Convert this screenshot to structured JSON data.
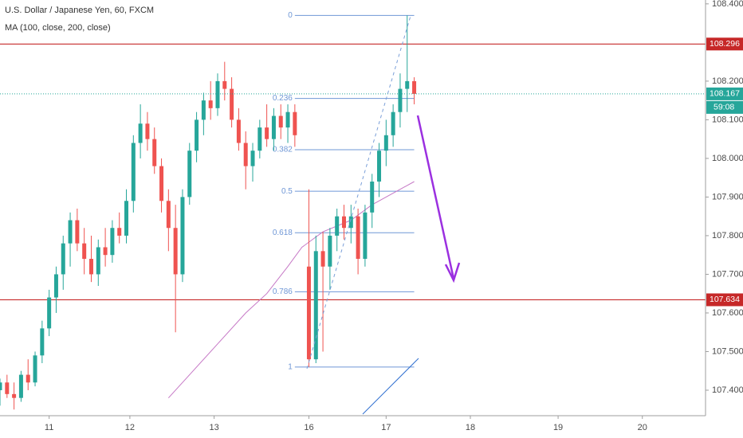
{
  "chart_data": {
    "type": "candlestick",
    "title": "U.S. Dollar / Japanese Yen, 60, FXCM",
    "subtitle": "MA (100, close, 200, close)",
    "up_color": "#26a69a",
    "down_color": "#ef5350",
    "x": [
      -14,
      -12,
      -10,
      -8,
      -6,
      -4,
      -2,
      0,
      2,
      4,
      6,
      8,
      10,
      12,
      14,
      16,
      18,
      20,
      22,
      24,
      26,
      28,
      30,
      32,
      34,
      36,
      38,
      40,
      42,
      44,
      46,
      48,
      50,
      52,
      54,
      56,
      58,
      60,
      62,
      64,
      66,
      68,
      70,
      74,
      76,
      78,
      80,
      82,
      84,
      86,
      88,
      90,
      92,
      94,
      96,
      98,
      100,
      102,
      104
    ],
    "open": [
      107.4,
      107.42,
      107.39,
      107.38,
      107.44,
      107.42,
      107.49,
      107.56,
      107.64,
      107.7,
      107.78,
      107.84,
      107.78,
      107.74,
      107.7,
      107.77,
      107.75,
      107.82,
      107.8,
      107.89,
      108.04,
      108.09,
      108.05,
      107.98,
      107.89,
      107.82,
      107.7,
      107.9,
      108.02,
      108.1,
      108.15,
      108.13,
      108.2,
      108.18,
      108.1,
      108.04,
      107.98,
      108.02,
      108.08,
      108.05,
      108.11,
      108.08,
      108.12,
      107.72,
      107.48,
      107.76,
      107.72,
      107.8,
      107.85,
      107.82,
      107.85,
      107.74,
      107.86,
      107.94,
      108.02,
      108.06,
      108.12,
      108.18,
      108.2
    ],
    "high": [
      107.43,
      107.44,
      107.42,
      107.45,
      107.48,
      107.5,
      107.58,
      107.66,
      107.72,
      107.8,
      107.86,
      107.87,
      107.82,
      107.8,
      107.79,
      107.82,
      107.84,
      107.86,
      107.92,
      108.06,
      108.14,
      108.12,
      108.08,
      108.0,
      107.92,
      107.88,
      107.92,
      108.04,
      108.12,
      108.17,
      108.2,
      108.22,
      108.25,
      108.21,
      108.13,
      108.07,
      108.04,
      108.1,
      108.14,
      108.13,
      108.14,
      108.14,
      108.14,
      107.92,
      107.8,
      107.81,
      107.82,
      107.87,
      107.88,
      107.88,
      107.87,
      107.88,
      107.96,
      108.04,
      108.1,
      108.14,
      108.22,
      108.37,
      108.21
    ],
    "low": [
      107.36,
      107.38,
      107.35,
      107.37,
      107.4,
      107.41,
      107.47,
      107.54,
      107.6,
      107.66,
      107.72,
      107.76,
      107.7,
      107.68,
      107.67,
      107.72,
      107.73,
      107.78,
      107.78,
      107.86,
      108.0,
      108.02,
      107.96,
      107.86,
      107.76,
      107.55,
      107.68,
      107.88,
      107.99,
      108.06,
      108.1,
      108.11,
      108.15,
      108.08,
      108.02,
      107.92,
      107.94,
      108.0,
      108.03,
      108.02,
      108.05,
      108.04,
      108.03,
      107.46,
      107.47,
      107.5,
      107.66,
      107.76,
      107.79,
      107.78,
      107.7,
      107.72,
      107.82,
      107.9,
      107.98,
      108.03,
      108.08,
      108.12,
      108.14
    ],
    "close": [
      107.42,
      107.39,
      107.38,
      107.44,
      107.42,
      107.49,
      107.56,
      107.64,
      107.7,
      107.78,
      107.84,
      107.78,
      107.74,
      107.7,
      107.77,
      107.75,
      107.82,
      107.8,
      107.89,
      108.04,
      108.09,
      108.05,
      107.98,
      107.89,
      107.82,
      107.7,
      107.9,
      108.02,
      108.1,
      108.15,
      108.13,
      108.2,
      108.18,
      108.1,
      108.04,
      107.98,
      108.02,
      108.08,
      108.05,
      108.11,
      108.08,
      108.12,
      108.06,
      107.48,
      107.76,
      107.72,
      107.8,
      107.85,
      107.82,
      107.85,
      107.74,
      107.86,
      107.94,
      108.02,
      108.06,
      108.12,
      108.18,
      108.2,
      108.167
    ],
    "countdown": "59:08",
    "ma": {
      "color": "#c678c6",
      "x": [
        34,
        40,
        48,
        56,
        62,
        68,
        72,
        78,
        86,
        92,
        98,
        104
      ],
      "values": [
        107.38,
        107.44,
        107.52,
        107.6,
        107.65,
        107.72,
        107.77,
        107.81,
        107.84,
        107.88,
        107.91,
        107.94
      ]
    },
    "hlines": {
      "color": "#c62828",
      "values": [
        108.296,
        107.634
      ]
    },
    "fib": {
      "color": "#6f97d6",
      "high": 108.37,
      "low": 107.46,
      "x": [
        70,
        104
      ],
      "levels": [
        0,
        0.236,
        0.382,
        0.5,
        0.618,
        0.786,
        1
      ]
    },
    "xlim": [
      -14,
      187
    ],
    "ylim": [
      107.334,
      108.41
    ],
    "xticks": [
      {
        "value": 0,
        "label": "11"
      },
      {
        "value": 23,
        "label": "12"
      },
      {
        "value": 47,
        "label": "13"
      },
      {
        "value": 74,
        "label": "16"
      },
      {
        "value": 96,
        "label": "17"
      },
      {
        "value": 120,
        "label": "18"
      },
      {
        "value": 145,
        "label": "19"
      },
      {
        "value": 169,
        "label": "20"
      }
    ],
    "yticks": [
      {
        "value": 108.4,
        "label": "108.400"
      },
      {
        "value": 108.2,
        "label": "108.200"
      },
      {
        "value": 108.1,
        "label": "108.100"
      },
      {
        "value": 108.0,
        "label": "108.000"
      },
      {
        "value": 107.9,
        "label": "107.900"
      },
      {
        "value": 107.8,
        "label": "107.800"
      },
      {
        "value": 107.7,
        "label": "107.700"
      },
      {
        "value": 107.6,
        "label": "107.600"
      },
      {
        "value": 107.5,
        "label": "107.500"
      },
      {
        "value": 107.4,
        "label": "107.400"
      }
    ]
  }
}
